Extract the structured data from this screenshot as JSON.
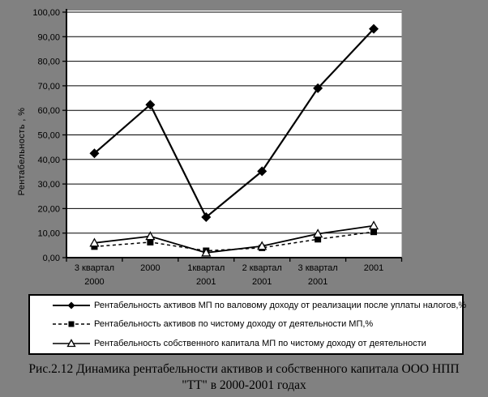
{
  "window": {
    "background": "#818181"
  },
  "colors": {
    "plot_fill": "#ffffff",
    "line": "#000000",
    "text": "#000000",
    "legend_fill": "#ffffff"
  },
  "chart_data": {
    "type": "line",
    "title": "",
    "xlabel": "",
    "ylabel": "Рентабельность , %",
    "ylim": [
      0,
      100
    ],
    "y_tick_step": 10,
    "y_tick_labels": [
      "0,00",
      "10,00",
      "20,00",
      "30,00",
      "40,00",
      "50,00",
      "60,00",
      "70,00",
      "80,00",
      "90,00",
      "100,00"
    ],
    "grid": "horizontal",
    "legend_position": "bottom-box",
    "categories": [
      [
        "3 квартал",
        "2000"
      ],
      [
        "2000"
      ],
      [
        "1квартал",
        "2001"
      ],
      [
        "2 квартал",
        "2001"
      ],
      [
        "3 квартал",
        "2001"
      ],
      [
        "2001"
      ]
    ],
    "series": [
      {
        "name": "Рентабельность активов МП по валовому доходу от реализации после уплаты налогов,%",
        "marker": "diamond",
        "line_style": "solid",
        "values": [
          42.5,
          62.3,
          16.5,
          35.2,
          69.0,
          93.2
        ]
      },
      {
        "name": "Рентабельность активов по чистому доходу от деятельности МП,%",
        "marker": "square",
        "line_style": "dashed",
        "values": [
          4.5,
          6.3,
          2.8,
          4.0,
          7.5,
          10.5
        ]
      },
      {
        "name": "Рентабельность собственного капитала МП по чистому доходу от деятельности",
        "marker": "triangle-open",
        "line_style": "solid",
        "values": [
          6.0,
          8.7,
          2.0,
          4.7,
          9.7,
          13.0
        ]
      }
    ]
  },
  "caption": {
    "line1": "Рис.2.12 Динамика рентабельности активов и собственного капитала ООО НПП",
    "line2": "\"ТТ\" в 2000-2001 годах"
  }
}
